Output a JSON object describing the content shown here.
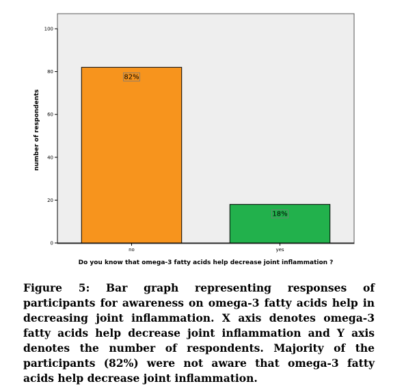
{
  "chart_data": {
    "type": "bar",
    "categories": [
      "no",
      "yes"
    ],
    "values": [
      82,
      18
    ],
    "data_labels": [
      "82%",
      "18%"
    ],
    "colors": [
      "#f7941d",
      "#22b14c"
    ],
    "xlabel": "Do you know that omega-3 fatty acids help decrease joint inflammation ?",
    "ylabel": "number of respondents",
    "ylim": [
      0,
      100
    ],
    "yticks": [
      0,
      20,
      40,
      60,
      80,
      100
    ],
    "plot_background": "#eeeeee",
    "grid": false
  },
  "caption": {
    "text": "Figure 5: Bar graph representing responses of participants for awareness on omega-3 fatty acids help in decreasing joint inflammation. X axis denotes omega-3 fatty acids help decrease joint inflammation and Y axis denotes the number of respondents. Majority of the participants (82%) were not aware that omega-3 fatty acids help decrease joint inflammation."
  }
}
